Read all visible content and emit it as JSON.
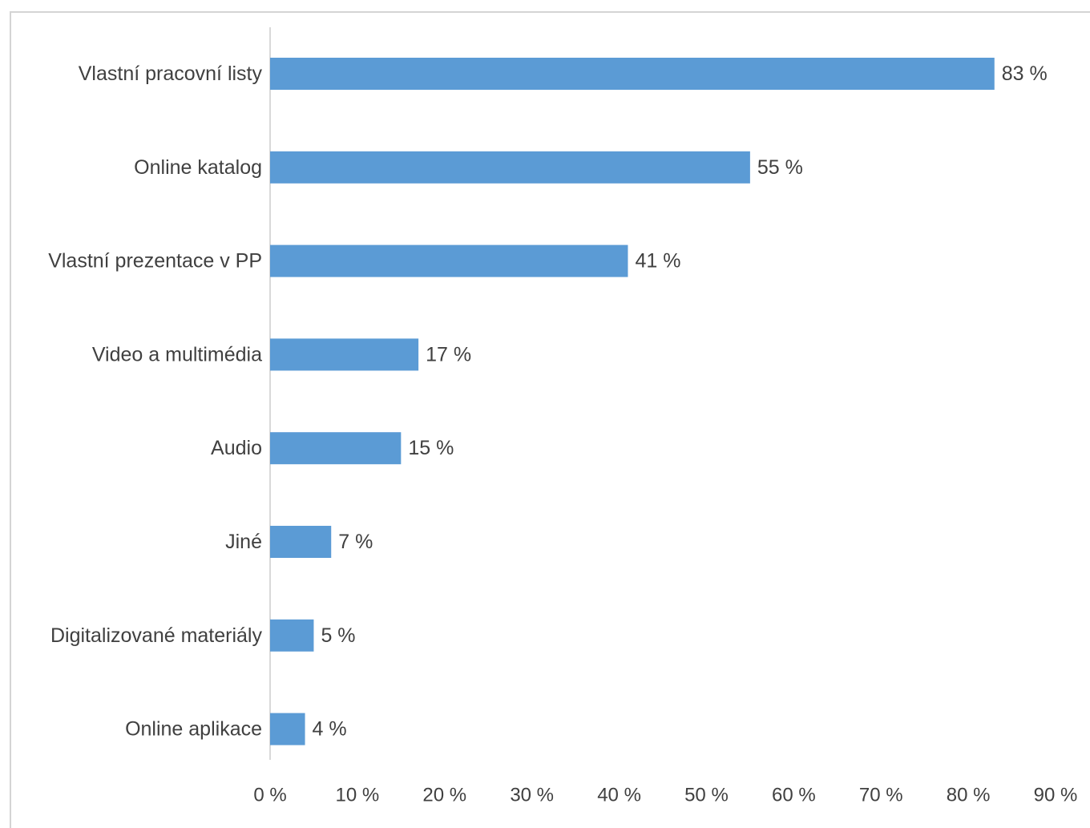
{
  "chart_data": {
    "type": "bar",
    "orientation": "horizontal",
    "categories": [
      "Vlastní pracovní listy",
      "Online katalog",
      "Vlastní prezentace v PP",
      "Video a multimédia",
      "Audio",
      "Jiné",
      "Digitalizované materiály",
      "Online aplikace"
    ],
    "values": [
      83,
      55,
      41,
      17,
      15,
      7,
      5,
      4
    ],
    "data_labels": [
      "83 %",
      "55 %",
      "41 %",
      "17 %",
      "15 %",
      "7 %",
      "5 %",
      "4 %"
    ],
    "title": "",
    "xlabel": "",
    "ylabel": "",
    "xlim": [
      0,
      90
    ],
    "x_ticks": [
      0,
      10,
      20,
      30,
      40,
      50,
      60,
      70,
      80,
      90
    ],
    "x_tick_labels": [
      "0 %",
      "10 %",
      "20 %",
      "30 %",
      "40 %",
      "50 %",
      "60 %",
      "70 %",
      "80 %",
      "90 %"
    ],
    "grid": false,
    "legend": "none",
    "bar_color": "#5b9bd5",
    "axis_color": "#d9d9d9",
    "text_color": "#404040"
  }
}
